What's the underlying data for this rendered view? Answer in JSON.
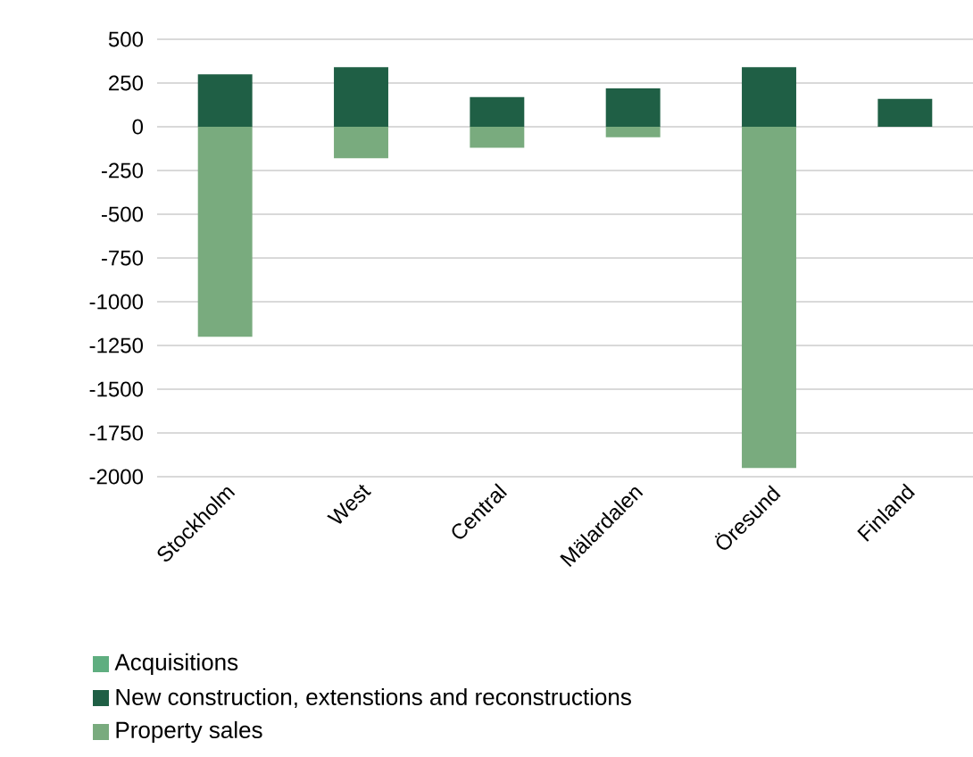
{
  "chart_data": {
    "type": "bar",
    "stacked": true,
    "categories": [
      "Stockholm",
      "West",
      "Central",
      "Mälardalen",
      "Öresund",
      "Finland"
    ],
    "series": [
      {
        "name": "Acquisitions",
        "color": "#5fae80",
        "values": [
          0,
          0,
          0,
          0,
          0,
          0
        ]
      },
      {
        "name": "New construction, extenstions and reconstructions",
        "color": "#1f5f45",
        "values": [
          300,
          340,
          170,
          220,
          340,
          160
        ]
      },
      {
        "name": "Property sales",
        "color": "#79ab7e",
        "values": [
          -1200,
          -180,
          -120,
          -60,
          -1950,
          0
        ]
      }
    ],
    "ylim": [
      -2000,
      500
    ],
    "yticks": [
      -2000,
      -1750,
      -1500,
      -1250,
      -1000,
      -750,
      -500,
      -250,
      0,
      250,
      500
    ],
    "grid": "y",
    "legend": "bottom"
  }
}
